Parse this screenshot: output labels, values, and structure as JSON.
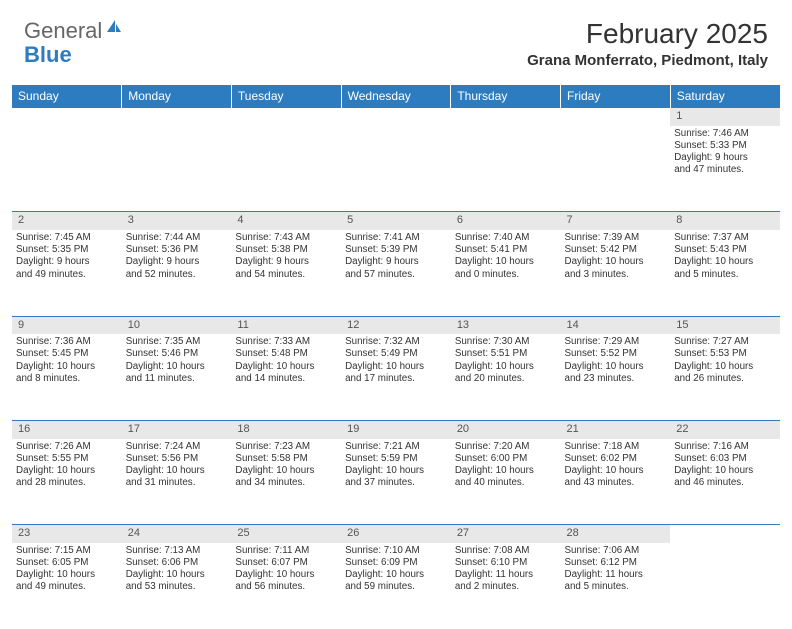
{
  "logo": {
    "text1": "General",
    "text2": "Blue"
  },
  "title": "February 2025",
  "location": "Grana Monferrato, Piedmont, Italy",
  "colors": {
    "header_bg": "#2e7cc0",
    "header_text": "#ffffff",
    "daynum_bg": "#e8e8e8",
    "border": "#2e7cc0",
    "body_text": "#333333",
    "logo_gray": "#666666"
  },
  "weekdays": [
    "Sunday",
    "Monday",
    "Tuesday",
    "Wednesday",
    "Thursday",
    "Friday",
    "Saturday"
  ],
  "weeks": [
    [
      null,
      null,
      null,
      null,
      null,
      null,
      {
        "n": "1",
        "sunrise": "7:46 AM",
        "sunset": "5:33 PM",
        "day_h": 9,
        "day_m": 47
      }
    ],
    [
      {
        "n": "2",
        "sunrise": "7:45 AM",
        "sunset": "5:35 PM",
        "day_h": 9,
        "day_m": 49
      },
      {
        "n": "3",
        "sunrise": "7:44 AM",
        "sunset": "5:36 PM",
        "day_h": 9,
        "day_m": 52
      },
      {
        "n": "4",
        "sunrise": "7:43 AM",
        "sunset": "5:38 PM",
        "day_h": 9,
        "day_m": 54
      },
      {
        "n": "5",
        "sunrise": "7:41 AM",
        "sunset": "5:39 PM",
        "day_h": 9,
        "day_m": 57
      },
      {
        "n": "6",
        "sunrise": "7:40 AM",
        "sunset": "5:41 PM",
        "day_h": 10,
        "day_m": 0
      },
      {
        "n": "7",
        "sunrise": "7:39 AM",
        "sunset": "5:42 PM",
        "day_h": 10,
        "day_m": 3
      },
      {
        "n": "8",
        "sunrise": "7:37 AM",
        "sunset": "5:43 PM",
        "day_h": 10,
        "day_m": 5
      }
    ],
    [
      {
        "n": "9",
        "sunrise": "7:36 AM",
        "sunset": "5:45 PM",
        "day_h": 10,
        "day_m": 8
      },
      {
        "n": "10",
        "sunrise": "7:35 AM",
        "sunset": "5:46 PM",
        "day_h": 10,
        "day_m": 11
      },
      {
        "n": "11",
        "sunrise": "7:33 AM",
        "sunset": "5:48 PM",
        "day_h": 10,
        "day_m": 14
      },
      {
        "n": "12",
        "sunrise": "7:32 AM",
        "sunset": "5:49 PM",
        "day_h": 10,
        "day_m": 17
      },
      {
        "n": "13",
        "sunrise": "7:30 AM",
        "sunset": "5:51 PM",
        "day_h": 10,
        "day_m": 20
      },
      {
        "n": "14",
        "sunrise": "7:29 AM",
        "sunset": "5:52 PM",
        "day_h": 10,
        "day_m": 23
      },
      {
        "n": "15",
        "sunrise": "7:27 AM",
        "sunset": "5:53 PM",
        "day_h": 10,
        "day_m": 26
      }
    ],
    [
      {
        "n": "16",
        "sunrise": "7:26 AM",
        "sunset": "5:55 PM",
        "day_h": 10,
        "day_m": 28
      },
      {
        "n": "17",
        "sunrise": "7:24 AM",
        "sunset": "5:56 PM",
        "day_h": 10,
        "day_m": 31
      },
      {
        "n": "18",
        "sunrise": "7:23 AM",
        "sunset": "5:58 PM",
        "day_h": 10,
        "day_m": 34
      },
      {
        "n": "19",
        "sunrise": "7:21 AM",
        "sunset": "5:59 PM",
        "day_h": 10,
        "day_m": 37
      },
      {
        "n": "20",
        "sunrise": "7:20 AM",
        "sunset": "6:00 PM",
        "day_h": 10,
        "day_m": 40
      },
      {
        "n": "21",
        "sunrise": "7:18 AM",
        "sunset": "6:02 PM",
        "day_h": 10,
        "day_m": 43
      },
      {
        "n": "22",
        "sunrise": "7:16 AM",
        "sunset": "6:03 PM",
        "day_h": 10,
        "day_m": 46
      }
    ],
    [
      {
        "n": "23",
        "sunrise": "7:15 AM",
        "sunset": "6:05 PM",
        "day_h": 10,
        "day_m": 49
      },
      {
        "n": "24",
        "sunrise": "7:13 AM",
        "sunset": "6:06 PM",
        "day_h": 10,
        "day_m": 53
      },
      {
        "n": "25",
        "sunrise": "7:11 AM",
        "sunset": "6:07 PM",
        "day_h": 10,
        "day_m": 56
      },
      {
        "n": "26",
        "sunrise": "7:10 AM",
        "sunset": "6:09 PM",
        "day_h": 10,
        "day_m": 59
      },
      {
        "n": "27",
        "sunrise": "7:08 AM",
        "sunset": "6:10 PM",
        "day_h": 11,
        "day_m": 2
      },
      {
        "n": "28",
        "sunrise": "7:06 AM",
        "sunset": "6:12 PM",
        "day_h": 11,
        "day_m": 5
      },
      null
    ]
  ],
  "labels": {
    "sunrise": "Sunrise:",
    "sunset": "Sunset:",
    "daylight": "Daylight:",
    "hours": "hours",
    "and": "and",
    "minutes": "minutes."
  }
}
